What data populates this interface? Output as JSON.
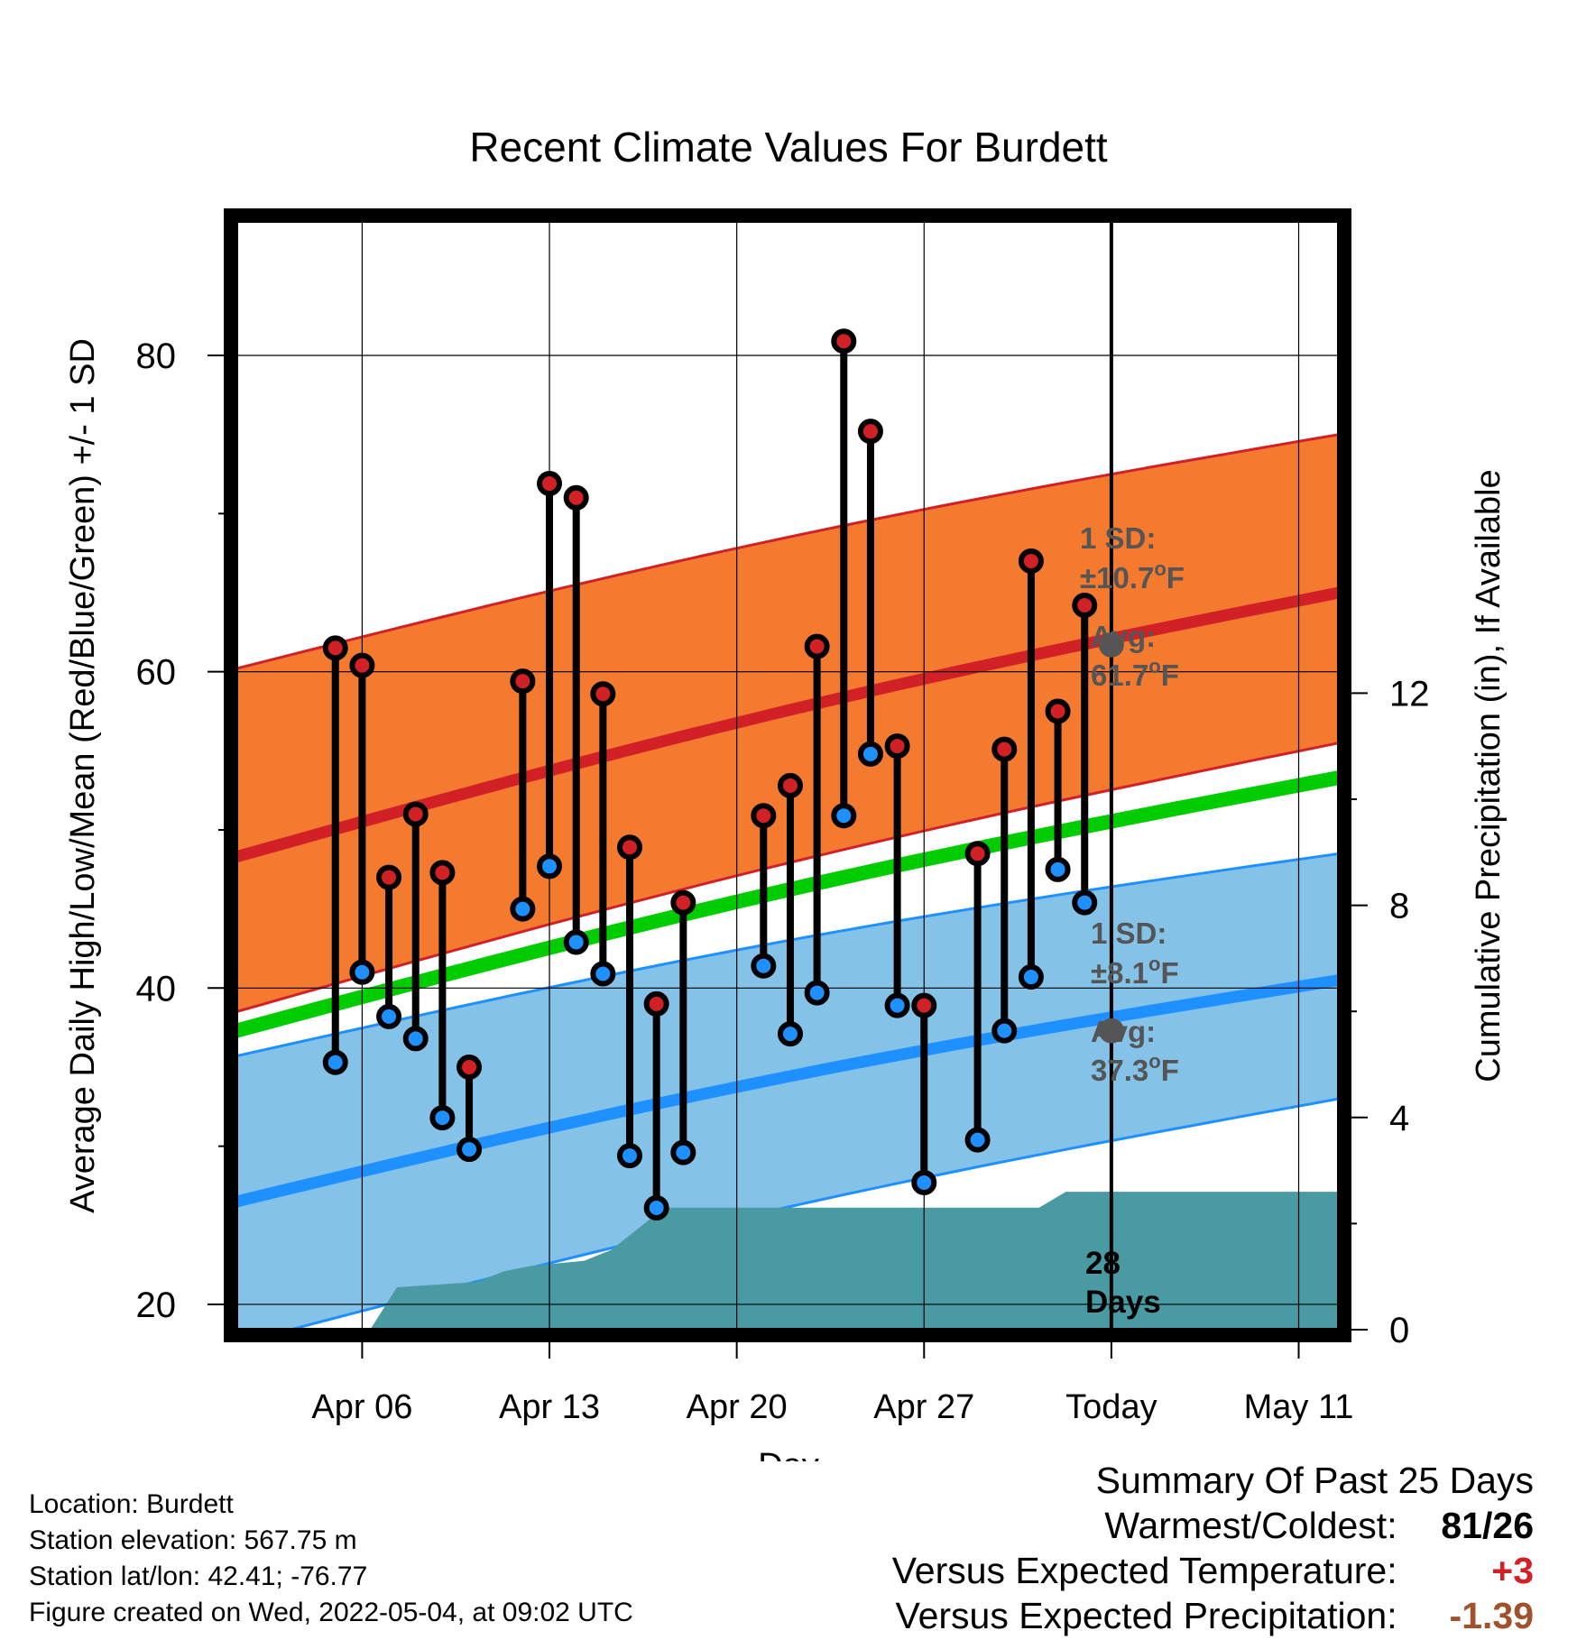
{
  "chart_data": {
    "type": "line",
    "title": "Recent Climate Values For Burdett",
    "xlabel": "Day",
    "ylabel": "Average Daily High/Low/Mean (Red/Blue/Green) +/- 1 SD",
    "y2label": "Cumulative Precipitation (in), If Available",
    "ylim": [
      18.4,
      88.5
    ],
    "y2lim": [
      0,
      20.9
    ],
    "xlim_days_from_apr01": [
      1.3,
      42.5
    ],
    "yticks": [
      "20",
      "40",
      "60",
      "80"
    ],
    "y2ticks": [
      "0",
      "4",
      "8",
      "12"
    ],
    "xticks": [
      {
        "day": 6,
        "label": "Apr 06"
      },
      {
        "day": 13,
        "label": "Apr 13"
      },
      {
        "day": 20,
        "label": "Apr 20"
      },
      {
        "day": 27,
        "label": "Apr 27"
      },
      {
        "day": 34,
        "label": "Today"
      },
      {
        "day": 41,
        "label": "May 11"
      }
    ],
    "today_day": 34,
    "normal_high": {
      "x": [
        1.3,
        42.5
      ],
      "y": [
        48.3,
        65.0
      ]
    },
    "normal_high_band": {
      "upper": {
        "x": [
          1.3,
          42.5
        ],
        "y": [
          60.2,
          75.0
        ]
      },
      "lower": {
        "x": [
          1.3,
          42.5
        ],
        "y": [
          38.5,
          55.5
        ]
      }
    },
    "normal_mean": {
      "x": [
        1.3,
        42.5
      ],
      "y": [
        37.3,
        53.3
      ]
    },
    "normal_low": {
      "x": [
        1.3,
        42.5
      ],
      "y": [
        26.5,
        40.5
      ]
    },
    "normal_low_band": {
      "upper": {
        "x": [
          1.3,
          42.5
        ],
        "y": [
          35.7,
          48.5
        ]
      },
      "lower": {
        "x": [
          1.3,
          42.5
        ],
        "y": [
          17.5,
          33.0
        ]
      }
    },
    "observed": [
      {
        "day": 5,
        "high": 61.5,
        "low": 35.3
      },
      {
        "day": 6,
        "high": 60.4,
        "low": 41.0
      },
      {
        "day": 7,
        "high": 47.0,
        "low": 38.2
      },
      {
        "day": 8,
        "high": 51.0,
        "low": 36.8
      },
      {
        "day": 9,
        "high": 47.3,
        "low": 31.8
      },
      {
        "day": 10,
        "high": 35.0,
        "low": 29.8
      },
      {
        "day": 12,
        "high": 59.4,
        "low": 45.0
      },
      {
        "day": 13,
        "high": 71.9,
        "low": 47.7
      },
      {
        "day": 14,
        "high": 71.0,
        "low": 42.9
      },
      {
        "day": 15,
        "high": 58.6,
        "low": 40.9
      },
      {
        "day": 16,
        "high": 48.9,
        "low": 29.4
      },
      {
        "day": 17,
        "high": 39.0,
        "low": 26.1
      },
      {
        "day": 18,
        "high": 45.4,
        "low": 29.6
      },
      {
        "day": 21,
        "high": 50.9,
        "low": 41.4
      },
      {
        "day": 22,
        "high": 52.8,
        "low": 37.1
      },
      {
        "day": 23,
        "high": 61.6,
        "low": 39.7
      },
      {
        "day": 24,
        "high": 80.9,
        "low": 50.9
      },
      {
        "day": 25,
        "high": 75.2,
        "low": 54.8
      },
      {
        "day": 26,
        "high": 55.3,
        "low": 38.9
      },
      {
        "day": 27,
        "high": 38.9,
        "low": 27.7
      },
      {
        "day": 29,
        "high": 48.5,
        "low": 30.4
      },
      {
        "day": 30,
        "high": 55.1,
        "low": 37.3
      },
      {
        "day": 31,
        "high": 67.0,
        "low": 40.7
      },
      {
        "day": 32,
        "high": 57.5,
        "low": 47.5
      },
      {
        "day": 33,
        "high": 64.2,
        "low": 45.4
      }
    ],
    "precip_cumulative": {
      "x": [
        1.3,
        5.3,
        6.3,
        7.3,
        10.3,
        11.3,
        12.3,
        14.3,
        15.3,
        16.3,
        17.3,
        18.3,
        31.3,
        32.3,
        42.5
      ],
      "y": [
        0,
        0,
        0,
        0.8,
        0.9,
        1.1,
        1.2,
        1.3,
        1.5,
        1.9,
        2.3,
        2.3,
        2.3,
        2.6,
        2.6
      ]
    },
    "normal_high_marker": {
      "value": 61.7,
      "sd_label": "1 SD:",
      "sd_value": "±10.7",
      "avg_label": "Avg:",
      "avg_value": "61.7"
    },
    "normal_low_marker": {
      "value": 37.3,
      "sd_label": "1 SD:",
      "sd_value": "±8.1",
      "avg_label": "Avg:",
      "avg_value": "37.3"
    },
    "degree_unit": "o",
    "unit_letter": "F",
    "precip_days_label": [
      "28",
      "Days"
    ],
    "colors": {
      "high_band": "#f47a30",
      "high_line": "#d22027",
      "high_band_edge": "#d22027",
      "mean_line": "#00cc00",
      "low_band": "#85c2e8",
      "low_line": "#1e90ff",
      "low_band_edge": "#1e90ff",
      "precip": "#4a9aa3",
      "high_dot": "#d22027",
      "low_dot": "#1e90ff",
      "marker": "#555555"
    }
  },
  "info": {
    "location": "Location: Burdett",
    "elevation": "Station elevation: 567.75 m",
    "latlon": "Station lat/lon: 42.41; -76.77",
    "created": "Figure created on Wed, 2022-05-04, at 09:02 UTC"
  },
  "summary": {
    "title": "Summary Of Past 25 Days",
    "warm_cold_label": "Warmest/Coldest:",
    "warm": "81",
    "slash": "/",
    "cold": "26",
    "temp_label": "Versus Expected Temperature:",
    "temp_value": "+3",
    "precip_label": "Versus Expected Precipitation:",
    "precip_value": "-1.39",
    "temp_color": "#d22027",
    "precip_color": "#a0522d"
  }
}
